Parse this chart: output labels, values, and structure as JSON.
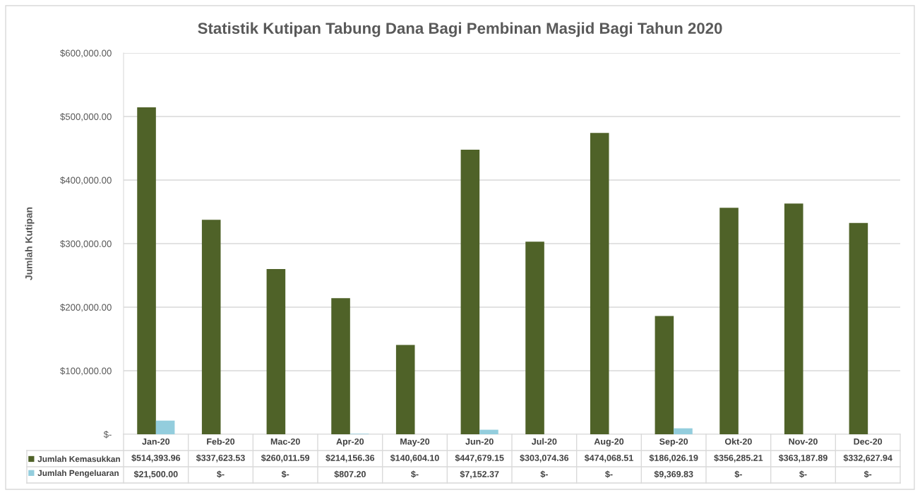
{
  "chart_data": {
    "type": "bar",
    "title": "Statistik Kutipan Tabung Dana Bagi Pembinan Masjid Bagi Tahun 2020",
    "ylabel": "Jumlah Kutipan",
    "categories": [
      "Jan-20",
      "Feb-20",
      "Mac-20",
      "Apr-20",
      "May-20",
      "Jun-20",
      "Jul-20",
      "Aug-20",
      "Sep-20",
      "Okt-20",
      "Nov-20",
      "Dec-20"
    ],
    "series": [
      {
        "name": "Jumlah Kemasukkan",
        "color": "#4f6228",
        "values": [
          514393.96,
          337623.53,
          260011.59,
          214156.36,
          140604.1,
          447679.15,
          303074.36,
          474068.51,
          186026.19,
          356285.21,
          363187.89,
          332627.94
        ],
        "value_labels": [
          "$514,393.96",
          "$337,623.53",
          "$260,011.59",
          "$214,156.36",
          "$140,604.10",
          "$447,679.15",
          "$303,074.36",
          "$474,068.51",
          "$186,026.19",
          "$356,285.21",
          "$363,187.89",
          "$332,627.94"
        ]
      },
      {
        "name": "Jumlah Pengeluaran",
        "color": "#93cddd",
        "values": [
          21500.0,
          0,
          0,
          807.2,
          0,
          7152.37,
          0,
          0,
          9369.83,
          0,
          0,
          0
        ],
        "value_labels": [
          "$21,500.00",
          "$-",
          "$-",
          "$807.20",
          "$-",
          "$7,152.37",
          "$-",
          "$-",
          "$9,369.83",
          "$-",
          "$-",
          "$-"
        ]
      }
    ],
    "ylim": [
      0,
      600000
    ],
    "yticks": [
      {
        "value": 0,
        "label": "$-"
      },
      {
        "value": 100000,
        "label": "$100,000.00"
      },
      {
        "value": 200000,
        "label": "$200,000.00"
      },
      {
        "value": 300000,
        "label": "$300,000.00"
      },
      {
        "value": 400000,
        "label": "$400,000.00"
      },
      {
        "value": 500000,
        "label": "$500,000.00"
      },
      {
        "value": 600000,
        "label": "$600,000.00"
      }
    ],
    "grid": "y",
    "legend": "bottom"
  }
}
